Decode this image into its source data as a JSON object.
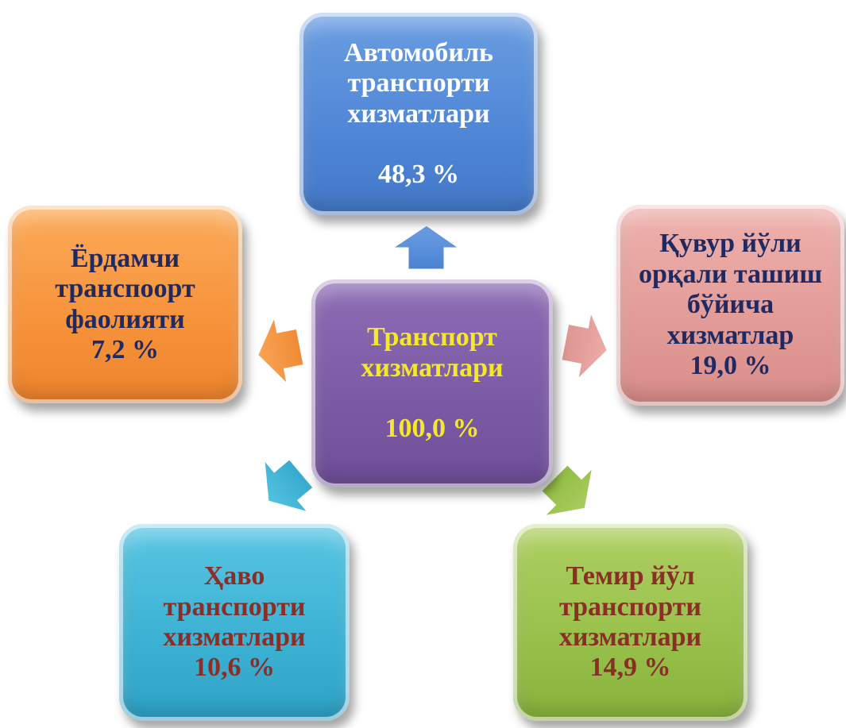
{
  "diagram": {
    "center": {
      "label": "Транспорт хизматлари",
      "value": "100,0 %"
    },
    "top": {
      "label": "Автомобиль транспорти хизматлари",
      "value": "48,3 %"
    },
    "left": {
      "label": "Ёрдамчи транспоорт фаолияти",
      "value": "7,2 %"
    },
    "right": {
      "label": "Қувур йўли орқали ташиш бўйича хизматлар",
      "value": "19,0 %"
    },
    "bottom_left": {
      "label": "Ҳаво транспорти хизматлари",
      "value": "10,6 %"
    },
    "bottom_right": {
      "label": "Темир йўл транспорти хизматлари",
      "value": "14,9 %"
    }
  },
  "colors": {
    "center": "#7a5aa4",
    "top": "#4f86d6",
    "left": "#f7923a",
    "right": "#e29b97",
    "bottom_left": "#3bb1d3",
    "bottom_right": "#97c04a",
    "yellow_text": "#f4e82a",
    "navy_text": "#1f2a63",
    "maroon_text": "#8a2e26"
  }
}
